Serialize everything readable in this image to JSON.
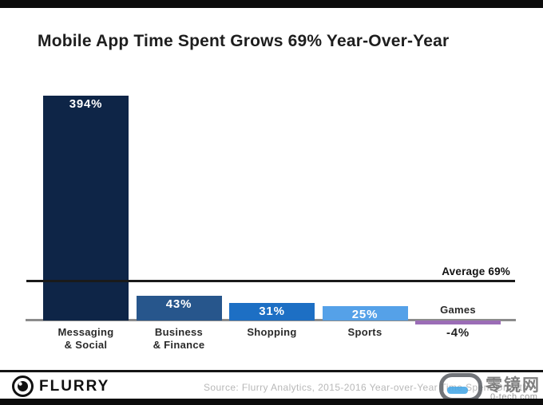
{
  "page": {
    "title": "Mobile App Time Spent Grows 69% Year-Over-Year"
  },
  "chart_data": {
    "type": "bar",
    "title": "Mobile App Time Spent Grows 69% Year-Over-Year",
    "categories": [
      "Messaging & Social",
      "Business & Finance",
      "Shopping",
      "Sports",
      "Games"
    ],
    "category_label_lines": [
      [
        "Messaging",
        "& Social"
      ],
      [
        "Business",
        "& Finance"
      ],
      [
        "Shopping"
      ],
      [
        "Sports"
      ],
      [
        "Games"
      ]
    ],
    "values": [
      394,
      43,
      31,
      25,
      -4
    ],
    "value_labels": [
      "394%",
      "43%",
      "31%",
      "25%",
      "-4%"
    ],
    "bar_colors": [
      "#0e2547",
      "#27568c",
      "#1d6fc4",
      "#55a1e8",
      "#9b6db6"
    ],
    "average_value": 69,
    "average_label": "Average 69%",
    "ylim": [
      -10,
      420
    ],
    "xlabel": "",
    "ylabel": "",
    "grid": false,
    "legend": false,
    "axis_color": "#8c8c8c",
    "average_line_color": "#1a1a1a"
  },
  "footer": {
    "logo_text": "FLURRY",
    "source_text": "Source: Flurry Analytics, 2015-2016 Year-over-Year Time Spent Growth"
  },
  "watermark": {
    "site_name": "零镜网",
    "site_url": "0-tech.com"
  }
}
